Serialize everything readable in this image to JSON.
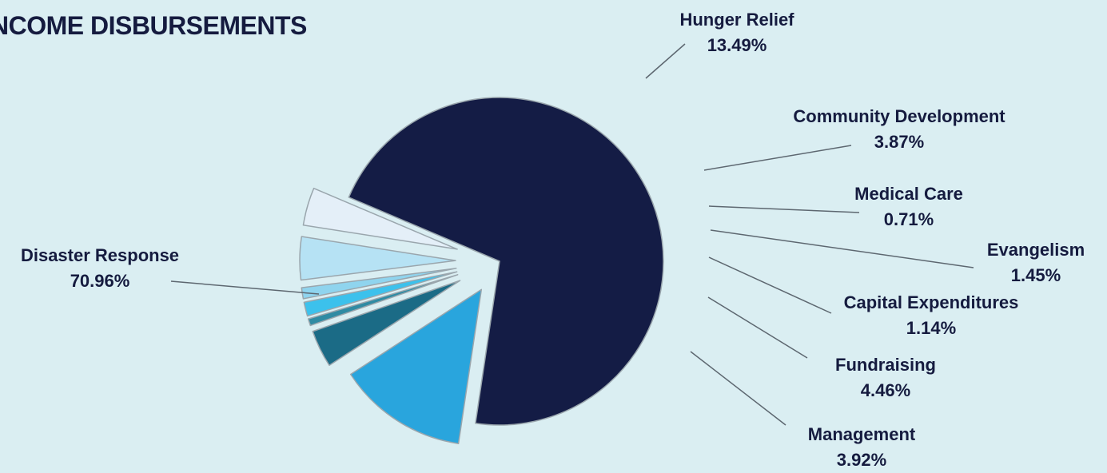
{
  "chart_data": {
    "type": "pie",
    "title": "NCOME DISBURSEMENTS",
    "slices": [
      {
        "name": "Disaster Response",
        "value": 70.96,
        "value_label": "70.96%",
        "color": "#141c45"
      },
      {
        "name": "Hunger Relief",
        "value": 13.49,
        "value_label": "13.49%",
        "color": "#29a5dd"
      },
      {
        "name": "Community Development",
        "value": 3.87,
        "value_label": "3.87%",
        "color": "#1b6b86"
      },
      {
        "name": "Medical Care",
        "value": 0.71,
        "value_label": "0.71%",
        "color": "#2f8ba3"
      },
      {
        "name": "Evangelism",
        "value": 1.45,
        "value_label": "1.45%",
        "color": "#3cc1ec"
      },
      {
        "name": "Capital Expenditures",
        "value": 1.14,
        "value_label": "1.14%",
        "color": "#8fd4ee"
      },
      {
        "name": "Fundraising",
        "value": 4.46,
        "value_label": "4.46%",
        "color": "#b6e2f4"
      },
      {
        "name": "Management",
        "value": 3.92,
        "value_label": "3.92%",
        "color": "#e4eff8"
      }
    ],
    "legend": "callout-labels",
    "background": "#daeef2"
  }
}
